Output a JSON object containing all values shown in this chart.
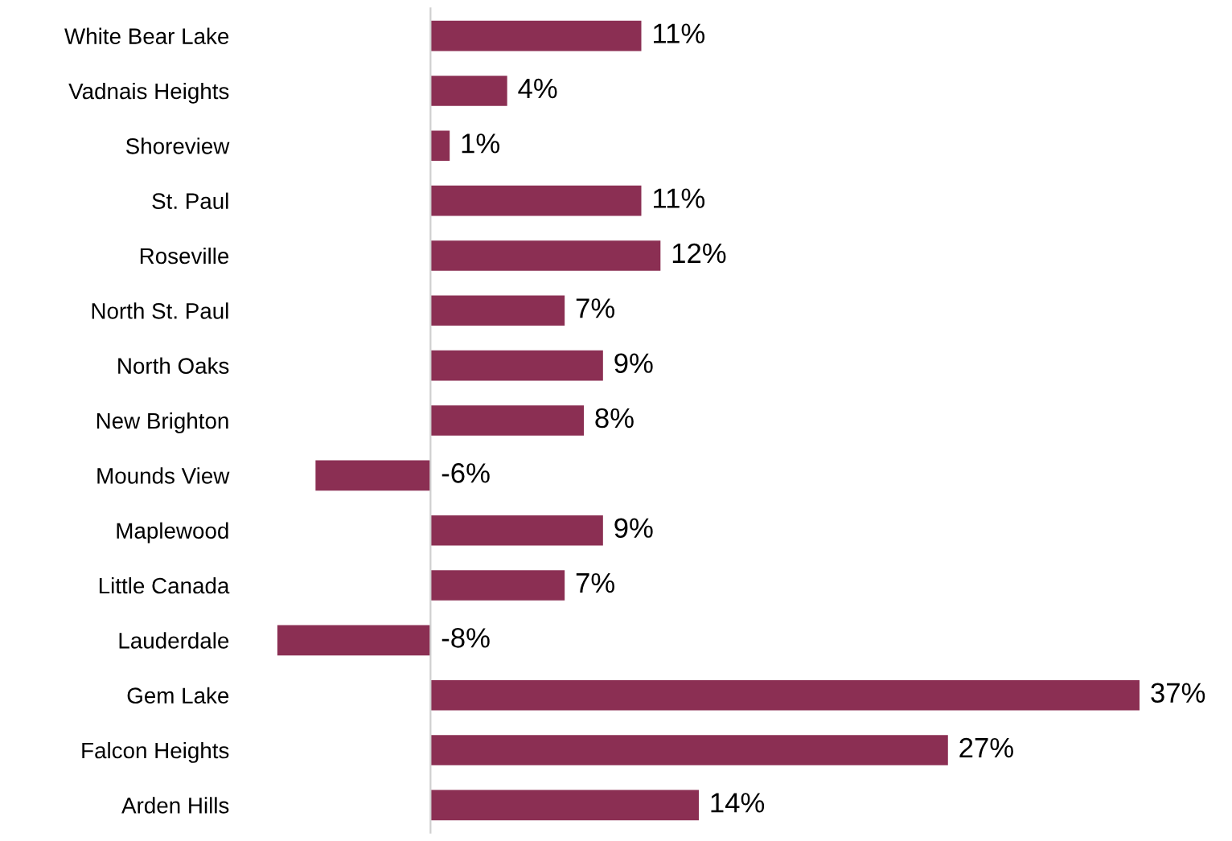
{
  "chart_data": {
    "type": "bar",
    "orientation": "horizontal",
    "categories": [
      "White Bear Lake",
      "Vadnais Heights",
      "Shoreview",
      "St. Paul",
      "Roseville",
      "North St. Paul",
      "North Oaks",
      "New Brighton",
      "Mounds View",
      "Maplewood",
      "Little Canada",
      "Lauderdale",
      "Gem Lake",
      "Falcon Heights",
      "Arden Hills"
    ],
    "values": [
      11,
      4,
      1,
      11,
      12,
      7,
      9,
      8,
      -6,
      9,
      7,
      -8,
      37,
      27,
      14
    ],
    "value_labels": [
      "11%",
      "4%",
      "1%",
      "11%",
      "12%",
      "7%",
      "9%",
      "8%",
      "-6%",
      "9%",
      "7%",
      "-8%",
      "37%",
      "27%",
      "14%"
    ],
    "color": "#8b2f53",
    "xlim": [
      -8,
      37
    ],
    "tick_labels": "y",
    "grid": false
  }
}
